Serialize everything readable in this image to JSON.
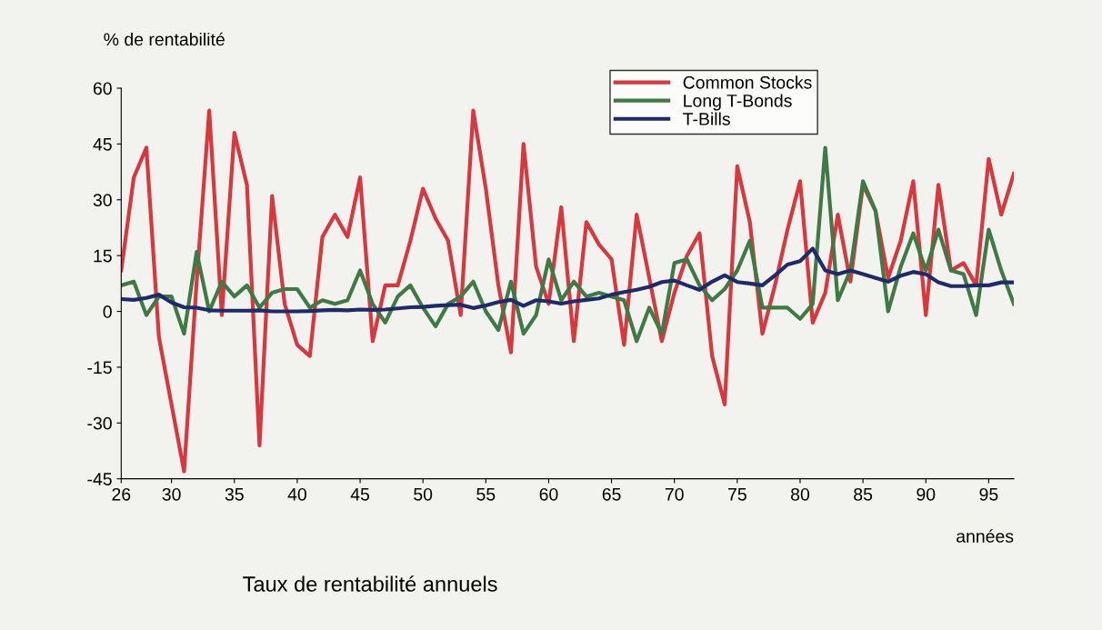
{
  "chart_data": {
    "type": "line",
    "ylabel": "% de rentabilité",
    "xlabel": "années",
    "annotations": [
      "Taux de rentabilité annuels"
    ],
    "x": [
      26,
      27,
      28,
      29,
      30,
      31,
      32,
      33,
      34,
      35,
      36,
      37,
      38,
      39,
      40,
      41,
      42,
      43,
      44,
      45,
      46,
      47,
      48,
      49,
      50,
      51,
      52,
      53,
      54,
      55,
      56,
      57,
      58,
      59,
      60,
      61,
      62,
      63,
      64,
      65,
      66,
      67,
      68,
      69,
      70,
      71,
      72,
      73,
      74,
      75,
      76,
      77,
      78,
      79,
      80,
      81,
      82,
      83,
      84,
      85,
      86,
      87,
      88,
      89,
      90,
      91,
      92,
      93,
      94,
      95,
      96,
      97
    ],
    "series": [
      {
        "name": "Common Stocks",
        "color": "#d9363e",
        "values": [
          11,
          36,
          44,
          -7,
          -25,
          -43,
          8,
          54,
          -1,
          48,
          34,
          -36,
          31,
          2,
          -9,
          -12,
          20,
          26,
          20,
          36,
          -8,
          7,
          7,
          19,
          33,
          25,
          19,
          -1,
          54,
          33,
          7,
          -11,
          45,
          12,
          2,
          28,
          -8,
          24,
          18,
          14,
          -9,
          26,
          9,
          -8,
          5,
          15,
          21,
          -12,
          -25,
          39,
          24,
          -6,
          7,
          22,
          35,
          -3,
          5,
          26,
          8,
          34,
          27,
          9,
          19,
          35,
          -1,
          34,
          11,
          13,
          7,
          41,
          26,
          37
        ]
      },
      {
        "name": "Long T-Bonds",
        "color": "#3f7a45",
        "values": [
          7,
          8,
          -1,
          4,
          4,
          -6,
          16,
          0,
          8,
          4,
          7,
          1,
          5,
          6,
          6,
          1,
          3,
          2,
          3,
          11,
          2,
          -3,
          4,
          7,
          1,
          -4,
          2,
          4,
          8,
          0,
          -5,
          8,
          -6,
          -1,
          14,
          3,
          8,
          4,
          5,
          4,
          3,
          -8,
          1,
          -6,
          13,
          14,
          7,
          3,
          6,
          11,
          19,
          1,
          1,
          1,
          -2,
          2,
          44,
          3,
          11,
          35,
          27,
          0,
          12,
          21,
          11,
          22,
          11,
          10,
          -1,
          22,
          11,
          2
        ]
      },
      {
        "name": "T-Bills",
        "color": "#1f2a6b",
        "values": [
          3.3,
          3.1,
          3.6,
          4.5,
          2.4,
          1.1,
          1,
          0.3,
          0.2,
          0.2,
          0.2,
          0.3,
          0,
          0,
          0,
          0.1,
          0.3,
          0.4,
          0.3,
          0.5,
          0.4,
          0.5,
          0.8,
          1.1,
          1.2,
          1.5,
          1.7,
          1.8,
          0.9,
          1.6,
          2.5,
          3.1,
          1.5,
          3,
          2.7,
          2.1,
          2.7,
          3.1,
          3.5,
          4.5,
          5.2,
          5.8,
          6.6,
          7.9,
          8.3,
          7,
          5.8,
          8,
          9.7,
          7.9,
          7.5,
          7,
          9.7,
          12.6,
          13.5,
          16.9,
          11,
          10,
          11,
          10,
          9,
          8,
          9.6,
          10.6,
          10,
          7.8,
          6.8,
          6.8,
          7,
          7,
          7.8,
          7.8
        ]
      }
    ],
    "xlim": [
      26,
      97
    ],
    "xticks": [
      26,
      30,
      35,
      40,
      45,
      50,
      55,
      60,
      65,
      70,
      75,
      80,
      85,
      90,
      95
    ],
    "ylim": [
      -45,
      60
    ],
    "yticks": [
      -45,
      -30,
      -15,
      0,
      15,
      30,
      45,
      60
    ],
    "grid": false,
    "legend": "top right",
    "marker": "none",
    "line_style": "solid"
  }
}
